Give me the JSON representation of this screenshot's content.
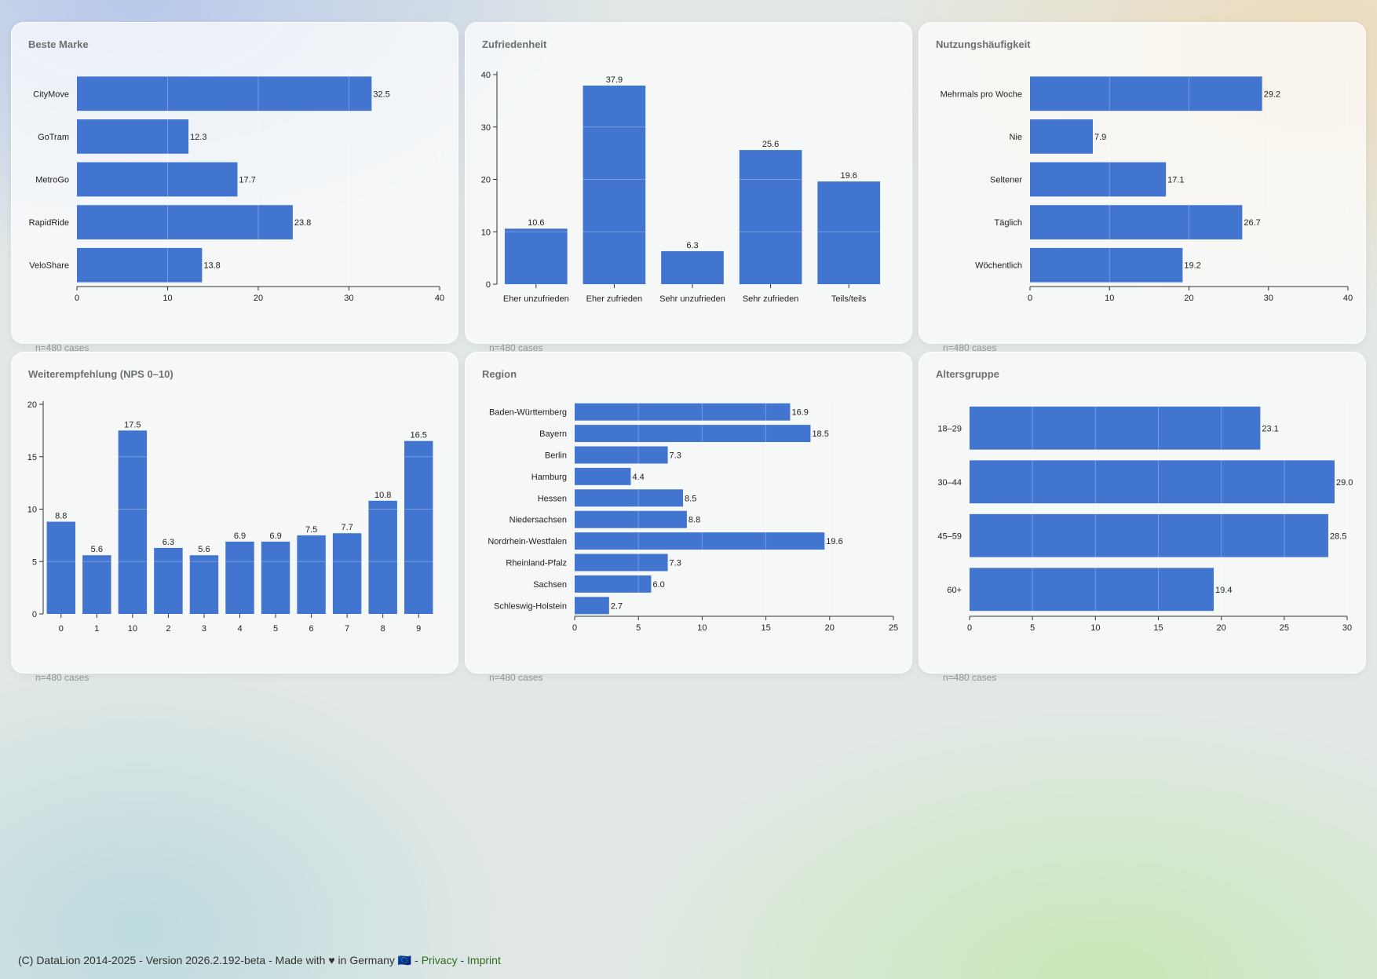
{
  "footer": {
    "text": "(C) DataLion 2014-2025 - Version 2026.2.192-beta - Made with ♥ in Germany 🇪🇺 -",
    "privacy": "Privacy",
    "separator": "-",
    "imprint": "Imprint"
  },
  "colors": {
    "bar": "#4175d0",
    "axis": "#333333"
  },
  "chart_data": [
    {
      "title": "Beste Marke",
      "type": "bar",
      "orientation": "horizontal",
      "categories": [
        "CityMove",
        "GoTram",
        "MetroGo",
        "RapidRide",
        "VeloShare"
      ],
      "values": [
        32.5,
        12.3,
        17.7,
        23.8,
        13.8
      ],
      "xlim": [
        0,
        40
      ],
      "ticks": [
        0,
        10,
        20,
        30,
        40
      ],
      "value_labels": [
        "32.5",
        "12.3",
        "17.7",
        "23.8",
        "13.8"
      ],
      "note": "n=480 cases"
    },
    {
      "title": "Zufriedenheit",
      "type": "bar",
      "orientation": "vertical",
      "categories": [
        "Eher unzufrieden",
        "Eher zufrieden",
        "Sehr unzufrieden",
        "Sehr zufrieden",
        "Teils/teils"
      ],
      "values": [
        10.6,
        37.9,
        6.3,
        25.6,
        19.6
      ],
      "ylim": [
        0,
        40
      ],
      "ticks": [
        0,
        10,
        20,
        30,
        40
      ],
      "value_labels": [
        "10.6",
        "37.9",
        "6.3",
        "25.6",
        "19.6"
      ],
      "note": "n=480 cases"
    },
    {
      "title": "Nutzungshäufigkeit",
      "type": "bar",
      "orientation": "horizontal",
      "categories": [
        "Mehrmals pro Woche",
        "Nie",
        "Seltener",
        "Täglich",
        "Wöchentlich"
      ],
      "values": [
        29.2,
        7.9,
        17.1,
        26.7,
        19.2
      ],
      "xlim": [
        0,
        40
      ],
      "ticks": [
        0,
        10,
        20,
        30,
        40
      ],
      "value_labels": [
        "29.2",
        "7.9",
        "17.1",
        "26.7",
        "19.2"
      ],
      "note": "n=480 cases"
    },
    {
      "title": "Weiterempfehlung (NPS 0–10)",
      "type": "bar",
      "orientation": "vertical",
      "categories": [
        "0",
        "1",
        "10",
        "2",
        "3",
        "4",
        "5",
        "6",
        "7",
        "8",
        "9"
      ],
      "values": [
        8.8,
        5.6,
        17.5,
        6.3,
        5.6,
        6.9,
        6.9,
        7.5,
        7.7,
        10.8,
        16.5
      ],
      "ylim": [
        0,
        20
      ],
      "ticks": [
        0,
        5,
        10,
        15,
        20
      ],
      "value_labels": [
        "8.8",
        "5.6",
        "17.5",
        "6.3",
        "5.6",
        "6.9",
        "6.9",
        "7.5",
        "7.7",
        "10.8",
        "16.5"
      ],
      "note": "n=480 cases"
    },
    {
      "title": "Region",
      "type": "bar",
      "orientation": "horizontal",
      "categories": [
        "Baden-Württemberg",
        "Bayern",
        "Berlin",
        "Hamburg",
        "Hessen",
        "Niedersachsen",
        "Nordrhein-Westfalen",
        "Rheinland-Pfalz",
        "Sachsen",
        "Schleswig-Holstein"
      ],
      "values": [
        16.9,
        18.5,
        7.3,
        4.4,
        8.5,
        8.8,
        19.6,
        7.3,
        6.0,
        2.7
      ],
      "xlim": [
        0,
        25
      ],
      "ticks": [
        0,
        5,
        10,
        15,
        20,
        25
      ],
      "value_labels": [
        "16.9",
        "18.5",
        "7.3",
        "4.4",
        "8.5",
        "8.8",
        "19.6",
        "7.3",
        "6.0",
        "2.7"
      ],
      "note": "n=480 cases"
    },
    {
      "title": "Altersgruppe",
      "type": "bar",
      "orientation": "horizontal",
      "categories": [
        "18–29",
        "30–44",
        "45–59",
        "60+"
      ],
      "values": [
        23.1,
        29.0,
        28.5,
        19.4
      ],
      "xlim": [
        0,
        30
      ],
      "ticks": [
        0,
        5,
        10,
        15,
        20,
        25,
        30
      ],
      "value_labels": [
        "23.1",
        "29.0",
        "28.5",
        "19.4"
      ],
      "note": "n=480 cases"
    }
  ]
}
